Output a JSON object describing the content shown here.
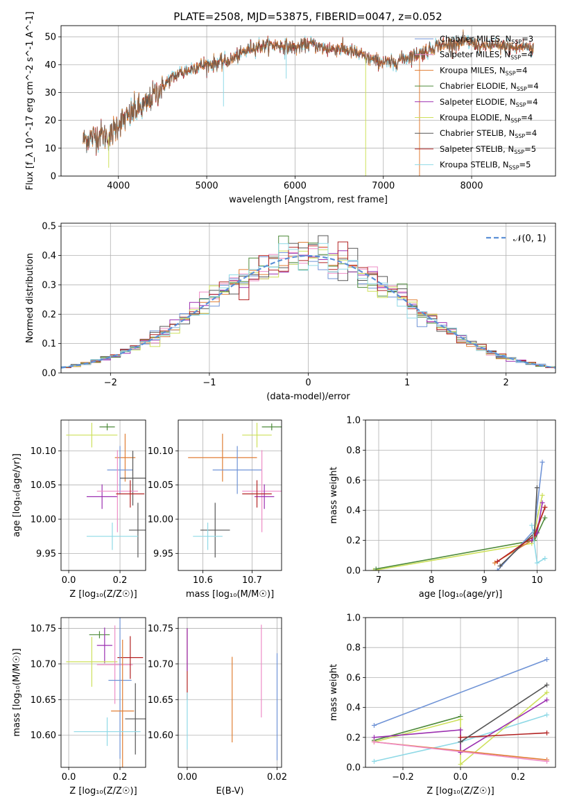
{
  "figure": {
    "title": "PLATE=2508, MJD=53875, FIBERID=0047, z=0.052"
  },
  "colors": {
    "Chabrier MILES": "#6f93d6",
    "Salpeter MILES": "#ee8cc6",
    "Kroupa MILES": "#e07e34",
    "Chabrier ELODIE": "#4d8a3a",
    "Salpeter ELODIE": "#9b2fb0",
    "Kroupa ELODIE": "#cde05a",
    "Chabrier STELIB": "#555555",
    "Salpeter STELIB": "#b22222",
    "Kroupa STELIB": "#8fd9e6",
    "normal": "#5b8fd6"
  },
  "chart_data": [
    {
      "id": "spectrum",
      "type": "line",
      "xlabel": "wavelength [Angstrom, rest frame]",
      "ylabel": "Flux [f_λ 10^-17 erg cm^-2 s^-1 A^-1]",
      "xlim": [
        3350,
        8950
      ],
      "ylim": [
        0,
        54
      ],
      "xticks": [
        "4000",
        "5000",
        "6000",
        "7000",
        "8000"
      ],
      "yticks": [
        "0",
        "10",
        "20",
        "30",
        "40",
        "50"
      ],
      "legend_position": "right",
      "legend": [
        {
          "name": "Chabrier MILES, N",
          "sub": "SSP",
          "suffix": "=3"
        },
        {
          "name": "Salpeter MILES, N",
          "sub": "SSP",
          "suffix": "=4"
        },
        {
          "name": "Kroupa MILES, N",
          "sub": "SSP",
          "suffix": "=4"
        },
        {
          "name": "Chabrier ELODIE, N",
          "sub": "SSP",
          "suffix": "=4"
        },
        {
          "name": "Salpeter ELODIE, N",
          "sub": "SSP",
          "suffix": "=4"
        },
        {
          "name": "Kroupa ELODIE, N",
          "sub": "SSP",
          "suffix": "=4"
        },
        {
          "name": "Chabrier STELIB, N",
          "sub": "SSP",
          "suffix": "=4"
        },
        {
          "name": "Salpeter STELIB, N",
          "sub": "SSP",
          "suffix": "=5"
        },
        {
          "name": "Kroupa STELIB, N",
          "sub": "SSP",
          "suffix": "=5"
        }
      ],
      "continuum": [
        [
          3600,
          13
        ],
        [
          3700,
          14
        ],
        [
          3800,
          15
        ],
        [
          3900,
          14
        ],
        [
          4000,
          19
        ],
        [
          4100,
          21
        ],
        [
          4200,
          24
        ],
        [
          4300,
          25
        ],
        [
          4400,
          29
        ],
        [
          4500,
          32
        ],
        [
          4600,
          35
        ],
        [
          4700,
          37
        ],
        [
          4800,
          38
        ],
        [
          4900,
          39.5
        ],
        [
          5000,
          40
        ],
        [
          5100,
          40.5
        ],
        [
          5200,
          41
        ],
        [
          5300,
          42
        ],
        [
          5400,
          44
        ],
        [
          5500,
          46
        ],
        [
          5600,
          46.5
        ],
        [
          5700,
          47
        ],
        [
          5800,
          47
        ],
        [
          5900,
          46.5
        ],
        [
          6000,
          46
        ],
        [
          6100,
          47
        ],
        [
          6200,
          47.5
        ],
        [
          6300,
          46
        ],
        [
          6400,
          45.5
        ],
        [
          6500,
          46
        ],
        [
          6600,
          45
        ],
        [
          6700,
          44
        ],
        [
          6800,
          42.5
        ],
        [
          6900,
          41.5
        ],
        [
          7000,
          41
        ],
        [
          7100,
          40.5
        ],
        [
          7200,
          42
        ],
        [
          7300,
          43
        ],
        [
          7400,
          44
        ],
        [
          7500,
          45
        ],
        [
          7600,
          47
        ],
        [
          7700,
          47
        ],
        [
          7800,
          47.5
        ],
        [
          7900,
          48
        ],
        [
          8000,
          48
        ],
        [
          8100,
          46.5
        ],
        [
          8200,
          47
        ],
        [
          8300,
          46.5
        ],
        [
          8400,
          46.5
        ],
        [
          8500,
          46
        ],
        [
          8600,
          46.5
        ],
        [
          8700,
          46
        ]
      ]
    },
    {
      "id": "residuals",
      "type": "histogram",
      "xlabel": "(data-model)/error",
      "ylabel": "Normed distribution",
      "xlim": [
        -2.5,
        2.5
      ],
      "ylim": [
        0,
        0.51
      ],
      "xticks": [
        "−2",
        "−1",
        "0",
        "1",
        "2"
      ],
      "yticks": [
        "0.0",
        "0.1",
        "0.2",
        "0.3",
        "0.4",
        "0.5"
      ],
      "legend_position": "top-right",
      "legend": [
        "𝒩(0, 1)"
      ],
      "bin_width": 0.1,
      "normal_curve": {
        "mean": 0,
        "sigma": 1
      }
    },
    {
      "id": "age_vs_Z",
      "type": "scatter",
      "xlabel": "Z [log₁₀(Z/Z☉)]",
      "ylabel": "age [log₁₀(age/yr)]",
      "xlim": [
        -0.03,
        0.3
      ],
      "ylim": [
        9.925,
        10.145
      ],
      "xticks": [
        "0.0",
        "0.2"
      ],
      "yticks": [
        "9.95",
        "10.00",
        "10.05",
        "10.10"
      ],
      "points": [
        {
          "model": "Kroupa ELODIE",
          "x": 0.09,
          "y": 10.123,
          "xerr": 0.1,
          "yerr": 0.018
        },
        {
          "model": "Chabrier ELODIE",
          "x": 0.15,
          "y": 10.135,
          "xerr": 0.03,
          "yerr": 0.005
        },
        {
          "model": "Kroupa MILES",
          "x": 0.22,
          "y": 10.09,
          "xerr": 0.04,
          "yerr": 0.035
        },
        {
          "model": "Chabrier MILES",
          "x": 0.2,
          "y": 10.072,
          "xerr": 0.05,
          "yerr": 0.035
        },
        {
          "model": "Chabrier STELIB",
          "x": 0.25,
          "y": 10.06,
          "xerr": 0.05,
          "yerr": 0.04
        },
        {
          "model": "Salpeter ELODIE",
          "x": 0.13,
          "y": 10.033,
          "xerr": 0.06,
          "yerr": 0.018
        },
        {
          "model": "Salpeter MILES",
          "x": 0.19,
          "y": 10.041,
          "xerr": 0.08,
          "yerr": 0.06
        },
        {
          "model": "Salpeter STELIB",
          "x": 0.24,
          "y": 10.037,
          "xerr": 0.055,
          "yerr": 0.02
        },
        {
          "model": "Chabrier STELIB",
          "x": 0.27,
          "y": 9.984,
          "xerr": 0.035,
          "yerr": 0.04
        },
        {
          "model": "Kroupa STELIB",
          "x": 0.17,
          "y": 9.975,
          "xerr": 0.1,
          "yerr": 0.02
        }
      ]
    },
    {
      "id": "age_vs_mass",
      "type": "scatter",
      "xlabel": "mass [log₁₀(M/M☉)]",
      "ylabel": "",
      "xlim": [
        10.55,
        10.76
      ],
      "ylim": [
        9.925,
        10.145
      ],
      "xticks": [
        "10.6",
        "10.7"
      ],
      "yticks": [
        "9.95",
        "10.00",
        "10.05",
        "10.10"
      ],
      "points": [
        {
          "model": "Kroupa ELODIE",
          "x": 10.71,
          "y": 10.123,
          "xerr": 0.03,
          "yerr": 0.018
        },
        {
          "model": "Chabrier ELODIE",
          "x": 10.74,
          "y": 10.135,
          "xerr": 0.02,
          "yerr": 0.005
        },
        {
          "model": "Kroupa MILES",
          "x": 10.64,
          "y": 10.09,
          "xerr": 0.07,
          "yerr": 0.035
        },
        {
          "model": "Chabrier MILES",
          "x": 10.67,
          "y": 10.072,
          "xerr": 0.05,
          "yerr": 0.035
        },
        {
          "model": "Salpeter MILES",
          "x": 10.72,
          "y": 10.041,
          "xerr": 0.04,
          "yerr": 0.06
        },
        {
          "model": "Salpeter ELODIE",
          "x": 10.725,
          "y": 10.033,
          "xerr": 0.02,
          "yerr": 0.018
        },
        {
          "model": "Salpeter STELIB",
          "x": 10.71,
          "y": 10.037,
          "xerr": 0.03,
          "yerr": 0.02
        },
        {
          "model": "Chabrier STELIB",
          "x": 10.625,
          "y": 9.984,
          "xerr": 0.03,
          "yerr": 0.04
        },
        {
          "model": "Kroupa STELIB",
          "x": 10.61,
          "y": 9.975,
          "xerr": 0.03,
          "yerr": 0.02
        }
      ]
    },
    {
      "id": "weight_vs_age",
      "type": "line",
      "xlabel": "age [log₁₀(age/yr)]",
      "ylabel": "mass weight",
      "xlim": [
        6.75,
        10.35
      ],
      "ylim": [
        0,
        1
      ],
      "xticks": [
        "7",
        "8",
        "9",
        "10"
      ],
      "yticks": [
        "0.0",
        "0.2",
        "0.4",
        "0.6",
        "0.8",
        "1.0"
      ],
      "series": [
        {
          "model": "Kroupa ELODIE",
          "points": [
            [
              6.9,
              0.0
            ],
            [
              9.9,
              0.18
            ],
            [
              10.1,
              0.5
            ]
          ]
        },
        {
          "model": "Chabrier ELODIE",
          "points": [
            [
              6.95,
              0.01
            ],
            [
              9.95,
              0.2
            ],
            [
              10.15,
              0.35
            ]
          ]
        },
        {
          "model": "Kroupa MILES",
          "points": [
            [
              9.2,
              0.05
            ],
            [
              9.9,
              0.2
            ],
            [
              10.15,
              0.42
            ]
          ]
        },
        {
          "model": "Chabrier MILES",
          "points": [
            [
              9.25,
              0.0
            ],
            [
              9.95,
              0.27
            ],
            [
              10.1,
              0.72
            ]
          ]
        },
        {
          "model": "Chabrier STELIB",
          "points": [
            [
              9.3,
              0.03
            ],
            [
              9.95,
              0.25
            ],
            [
              10.0,
              0.55
            ]
          ]
        },
        {
          "model": "Salpeter ELODIE",
          "points": [
            [
              9.9,
              0.2
            ],
            [
              10.0,
              0.25
            ],
            [
              10.1,
              0.45
            ]
          ]
        },
        {
          "model": "Salpeter STELIB",
          "points": [
            [
              9.25,
              0.06
            ],
            [
              9.95,
              0.23
            ],
            [
              10.15,
              0.42
            ]
          ]
        },
        {
          "model": "Kroupa STELIB",
          "points": [
            [
              9.9,
              0.3
            ],
            [
              10.0,
              0.05
            ],
            [
              10.15,
              0.08
            ]
          ]
        }
      ]
    },
    {
      "id": "mass_vs_Z",
      "type": "scatter",
      "xlabel": "Z [log₁₀(Z/Z☉)]",
      "ylabel": "mass [log₁₀(M/M☉)]",
      "xlim": [
        -0.03,
        0.3
      ],
      "ylim": [
        10.555,
        10.765
      ],
      "xticks": [
        "0.0",
        "0.2"
      ],
      "yticks": [
        "10.60",
        "10.65",
        "10.70",
        "10.75"
      ],
      "points": [
        {
          "model": "Chabrier ELODIE",
          "x": 0.12,
          "y": 10.741,
          "xerr": 0.04,
          "yerr": 0.005
        },
        {
          "model": "Salpeter ELODIE",
          "x": 0.14,
          "y": 10.726,
          "xerr": 0.03,
          "yerr": 0.025
        },
        {
          "model": "Kroupa ELODIE",
          "x": 0.09,
          "y": 10.703,
          "xerr": 0.1,
          "yerr": 0.035
        },
        {
          "model": "Salpeter MILES",
          "x": 0.18,
          "y": 10.699,
          "xerr": 0.07,
          "yerr": 0.055
        },
        {
          "model": "Salpeter STELIB",
          "x": 0.24,
          "y": 10.709,
          "xerr": 0.05,
          "yerr": 0.03
        },
        {
          "model": "Chabrier MILES",
          "x": 0.2,
          "y": 10.677,
          "xerr": 0.045,
          "yerr": 0.11
        },
        {
          "model": "Kroupa MILES",
          "x": 0.21,
          "y": 10.634,
          "xerr": 0.045,
          "yerr": 0.1
        },
        {
          "model": "Chabrier STELIB",
          "x": 0.26,
          "y": 10.623,
          "xerr": 0.04,
          "yerr": 0.05
        },
        {
          "model": "Kroupa STELIB",
          "x": 0.15,
          "y": 10.605,
          "xerr": 0.13,
          "yerr": 0.02
        }
      ]
    },
    {
      "id": "mass_vs_ebv",
      "type": "scatter",
      "xlabel": "E(B-V)",
      "ylabel": "",
      "xlim": [
        -0.002,
        0.021
      ],
      "ylim": [
        10.555,
        10.765
      ],
      "xticks": [
        "0.00",
        "0.02"
      ],
      "yticks": [
        "10.60",
        "10.65",
        "10.70",
        "10.75"
      ],
      "points": [
        {
          "model": "Salpeter STELIB",
          "x": 0.0,
          "y": 10.7,
          "xerr": 0,
          "yerr": 0.05
        },
        {
          "model": "Salpeter ELODIE",
          "x": 0.0,
          "y": 10.72,
          "xerr": 0,
          "yerr": 0.03
        },
        {
          "model": "Kroupa STELIB",
          "x": 0.0,
          "y": 10.62,
          "xerr": 0,
          "yerr": 0.04
        },
        {
          "model": "Kroupa MILES",
          "x": 0.01,
          "y": 10.65,
          "xerr": 0,
          "yerr": 0.06
        },
        {
          "model": "Salpeter MILES",
          "x": 0.0165,
          "y": 10.69,
          "xerr": 0,
          "yerr": 0.065
        },
        {
          "model": "Chabrier MILES",
          "x": 0.02,
          "y": 10.64,
          "xerr": 0,
          "yerr": 0.075
        }
      ]
    },
    {
      "id": "weight_vs_Z",
      "type": "line",
      "xlabel": "Z [log₁₀(Z/Z☉)]",
      "ylabel": "mass weight",
      "xlim": [
        -0.33,
        0.33
      ],
      "ylim": [
        0,
        1
      ],
      "xticks": [
        "−0.2",
        "0.0",
        "0.2"
      ],
      "yticks": [
        "0.0",
        "0.2",
        "0.4",
        "0.6",
        "0.8",
        "1.0"
      ],
      "series": [
        {
          "model": "Chabrier MILES",
          "points": [
            [
              -0.3,
              0.28
            ],
            [
              0.3,
              0.72
            ]
          ]
        },
        {
          "model": "Kroupa STELIB",
          "points": [
            [
              -0.3,
              0.04
            ],
            [
              0.0,
              0.17
            ],
            [
              0.3,
              0.35
            ]
          ]
        },
        {
          "model": "Chabrier ELODIE",
          "points": [
            [
              -0.3,
              0.18
            ],
            [
              0.0,
              0.34
            ]
          ]
        },
        {
          "model": "Kroupa ELODIE",
          "points": [
            [
              -0.3,
              0.17
            ],
            [
              0.0,
              0.32
            ],
            [
              0.0,
              0.02
            ],
            [
              0.3,
              0.5
            ]
          ]
        },
        {
          "model": "Salpeter ELODIE",
          "points": [
            [
              -0.3,
              0.2
            ],
            [
              0.0,
              0.25
            ],
            [
              0.0,
              0.1
            ],
            [
              0.3,
              0.45
            ]
          ]
        },
        {
          "model": "Salpeter STELIB",
          "points": [
            [
              0.0,
              0.2
            ],
            [
              0.3,
              0.23
            ]
          ]
        },
        {
          "model": "Chabrier STELIB",
          "points": [
            [
              0.0,
              0.17
            ],
            [
              0.3,
              0.55
            ]
          ]
        },
        {
          "model": "Kroupa MILES",
          "points": [
            [
              -0.3,
              0.17
            ],
            [
              0.3,
              0.05
            ]
          ]
        },
        {
          "model": "Salpeter MILES",
          "points": [
            [
              -0.3,
              0.17
            ],
            [
              0.3,
              0.04
            ]
          ]
        }
      ]
    }
  ]
}
